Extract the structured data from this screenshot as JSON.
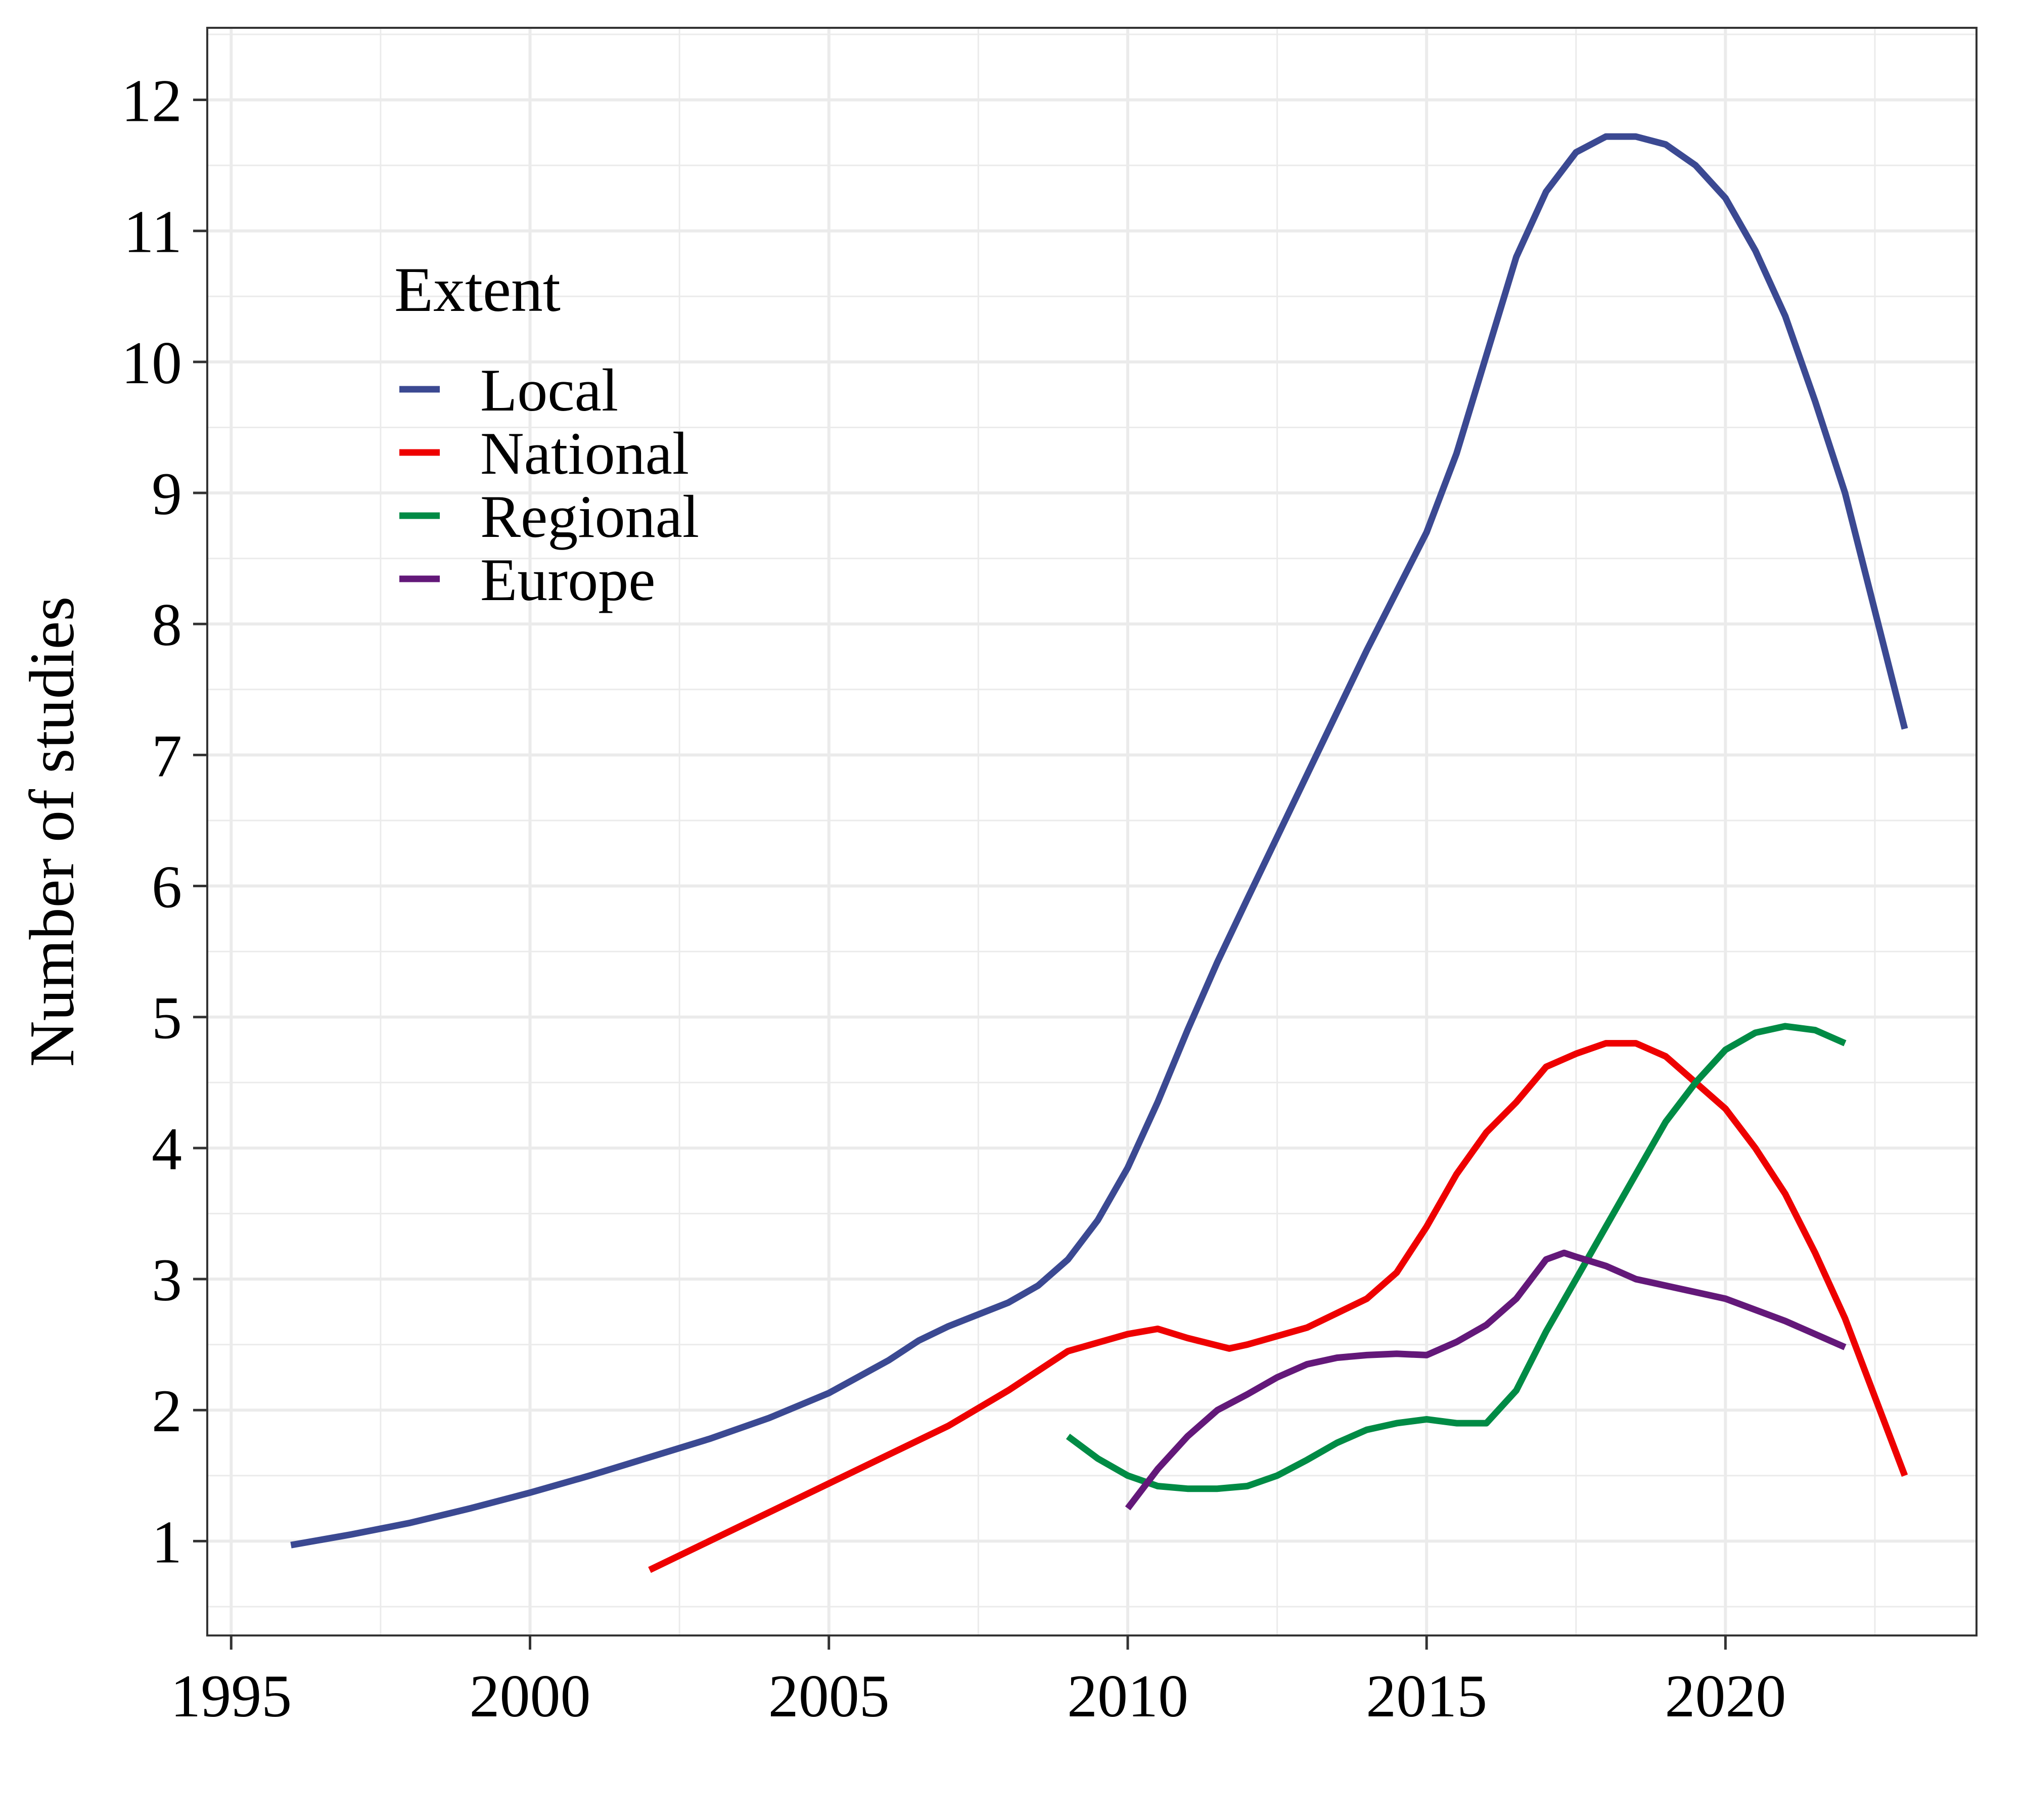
{
  "chart_data": {
    "type": "line",
    "xlabel": "",
    "ylabel": "Number of studies",
    "xlim": [
      1994.6,
      2024.2
    ],
    "ylim": [
      0.28,
      12.55
    ],
    "x_ticks": [
      1995,
      2000,
      2005,
      2010,
      2015,
      2020
    ],
    "y_ticks": [
      1,
      2,
      3,
      4,
      5,
      6,
      7,
      8,
      9,
      10,
      11,
      12
    ],
    "grid": true,
    "legend": {
      "title": "Extent",
      "position": "top-left-inside"
    },
    "series": [
      {
        "name": "Local",
        "color": "#3b4992",
        "points": [
          [
            1996,
            0.97
          ],
          [
            1997,
            1.05
          ],
          [
            1998,
            1.14
          ],
          [
            1999,
            1.25
          ],
          [
            2000,
            1.37
          ],
          [
            2001,
            1.5
          ],
          [
            2002,
            1.64
          ],
          [
            2003,
            1.78
          ],
          [
            2004,
            1.94
          ],
          [
            2005,
            2.13
          ],
          [
            2006,
            2.38
          ],
          [
            2006.5,
            2.53
          ],
          [
            2007,
            2.64
          ],
          [
            2008,
            2.82
          ],
          [
            2008.5,
            2.95
          ],
          [
            2009,
            3.15
          ],
          [
            2009.5,
            3.45
          ],
          [
            2010,
            3.85
          ],
          [
            2010.5,
            4.35
          ],
          [
            2011,
            4.9
          ],
          [
            2011.5,
            5.42
          ],
          [
            2012,
            5.9
          ],
          [
            2013,
            6.85
          ],
          [
            2014,
            7.8
          ],
          [
            2015,
            8.7
          ],
          [
            2015.5,
            9.3
          ],
          [
            2016,
            10.05
          ],
          [
            2016.5,
            10.8
          ],
          [
            2017,
            11.3
          ],
          [
            2017.5,
            11.6
          ],
          [
            2018,
            11.72
          ],
          [
            2018.5,
            11.72
          ],
          [
            2019,
            11.66
          ],
          [
            2019.5,
            11.5
          ],
          [
            2020,
            11.25
          ],
          [
            2020.5,
            10.85
          ],
          [
            2021,
            10.35
          ],
          [
            2021.5,
            9.7
          ],
          [
            2022,
            9.0
          ],
          [
            2022.5,
            8.1
          ],
          [
            2023,
            7.2
          ]
        ]
      },
      {
        "name": "National",
        "color": "#ee0000",
        "points": [
          [
            2002,
            0.78
          ],
          [
            2003,
            1.0
          ],
          [
            2004,
            1.22
          ],
          [
            2005,
            1.44
          ],
          [
            2006,
            1.66
          ],
          [
            2007,
            1.88
          ],
          [
            2008,
            2.15
          ],
          [
            2009,
            2.45
          ],
          [
            2010,
            2.58
          ],
          [
            2010.5,
            2.62
          ],
          [
            2011,
            2.55
          ],
          [
            2011.7,
            2.47
          ],
          [
            2012,
            2.5
          ],
          [
            2013,
            2.63
          ],
          [
            2014,
            2.85
          ],
          [
            2014.5,
            3.05
          ],
          [
            2015,
            3.4
          ],
          [
            2015.5,
            3.8
          ],
          [
            2016,
            4.12
          ],
          [
            2016.5,
            4.35
          ],
          [
            2017,
            4.62
          ],
          [
            2017.5,
            4.72
          ],
          [
            2018,
            4.8
          ],
          [
            2018.5,
            4.8
          ],
          [
            2019,
            4.7
          ],
          [
            2019.5,
            4.5
          ],
          [
            2020,
            4.3
          ],
          [
            2020.5,
            4.0
          ],
          [
            2021,
            3.65
          ],
          [
            2021.5,
            3.2
          ],
          [
            2022,
            2.7
          ],
          [
            2022.5,
            2.1
          ],
          [
            2023,
            1.5
          ]
        ]
      },
      {
        "name": "Regional",
        "color": "#008b45",
        "points": [
          [
            2009,
            1.8
          ],
          [
            2009.5,
            1.63
          ],
          [
            2010,
            1.5
          ],
          [
            2010.5,
            1.42
          ],
          [
            2011,
            1.4
          ],
          [
            2011.5,
            1.4
          ],
          [
            2012,
            1.42
          ],
          [
            2012.5,
            1.5
          ],
          [
            2013,
            1.62
          ],
          [
            2013.5,
            1.75
          ],
          [
            2014,
            1.85
          ],
          [
            2014.5,
            1.9
          ],
          [
            2015,
            1.93
          ],
          [
            2015.5,
            1.9
          ],
          [
            2016,
            1.9
          ],
          [
            2016.5,
            2.15
          ],
          [
            2017,
            2.6
          ],
          [
            2017.5,
            3.0
          ],
          [
            2018,
            3.4
          ],
          [
            2018.5,
            3.8
          ],
          [
            2019,
            4.2
          ],
          [
            2019.5,
            4.5
          ],
          [
            2020,
            4.75
          ],
          [
            2020.5,
            4.88
          ],
          [
            2021,
            4.93
          ],
          [
            2021.5,
            4.9
          ],
          [
            2022,
            4.8
          ]
        ]
      },
      {
        "name": "Europe",
        "color": "#631879",
        "points": [
          [
            2010,
            1.25
          ],
          [
            2010.5,
            1.55
          ],
          [
            2011,
            1.8
          ],
          [
            2011.5,
            2.0
          ],
          [
            2012,
            2.12
          ],
          [
            2012.5,
            2.25
          ],
          [
            2013,
            2.35
          ],
          [
            2013.5,
            2.4
          ],
          [
            2014,
            2.42
          ],
          [
            2014.5,
            2.43
          ],
          [
            2015,
            2.42
          ],
          [
            2015.5,
            2.52
          ],
          [
            2016,
            2.65
          ],
          [
            2016.5,
            2.85
          ],
          [
            2017,
            3.15
          ],
          [
            2017.3,
            3.2
          ],
          [
            2017.5,
            3.17
          ],
          [
            2018,
            3.1
          ],
          [
            2018.5,
            3.0
          ],
          [
            2019,
            2.95
          ],
          [
            2020,
            2.85
          ],
          [
            2021,
            2.68
          ],
          [
            2022,
            2.48
          ]
        ]
      }
    ]
  }
}
